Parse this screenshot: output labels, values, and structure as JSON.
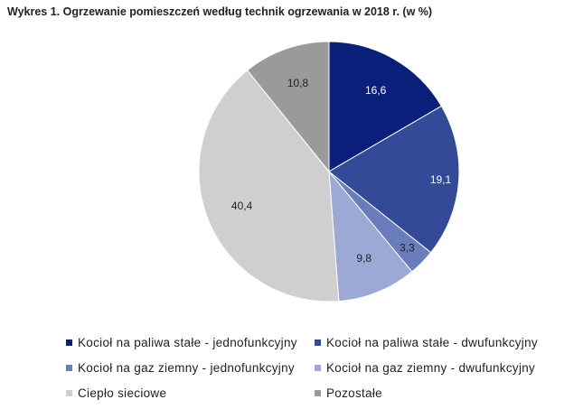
{
  "chart_data": {
    "type": "pie",
    "title": "Wykres 1. Ogrzewanie pomieszczeń według technik ogrzewania w 2018 r. (w %)",
    "labels": [
      "Kocioł na paliwa stałe - jednofunkcyjny",
      "Kocioł na paliwa stałe - dwufunkcyjny",
      "Kocioł na gaz ziemny - jednofunkcyjny",
      "Kocioł na gaz ziemny - dwufunkcyjny",
      "Ciepło sieciowe",
      "Pozostałe"
    ],
    "values": [
      16.6,
      19.1,
      3.3,
      9.8,
      40.4,
      10.8
    ],
    "value_labels": [
      "16,6",
      "19,1",
      "3,3",
      "9,8",
      "40,4",
      "10,8"
    ],
    "colors": [
      "#0a1f7a",
      "#334a99",
      "#6a7dbb",
      "#9ba9d4",
      "#cfcfcf",
      "#9a9a9a"
    ],
    "label_colors": [
      "#ffffff",
      "#ffffff",
      "#222222",
      "#222222",
      "#222222",
      "#222222"
    ],
    "start_angle": "top (12 o'clock)",
    "direction": "clockwise",
    "legend_position": "bottom",
    "legend_columns": 2
  }
}
